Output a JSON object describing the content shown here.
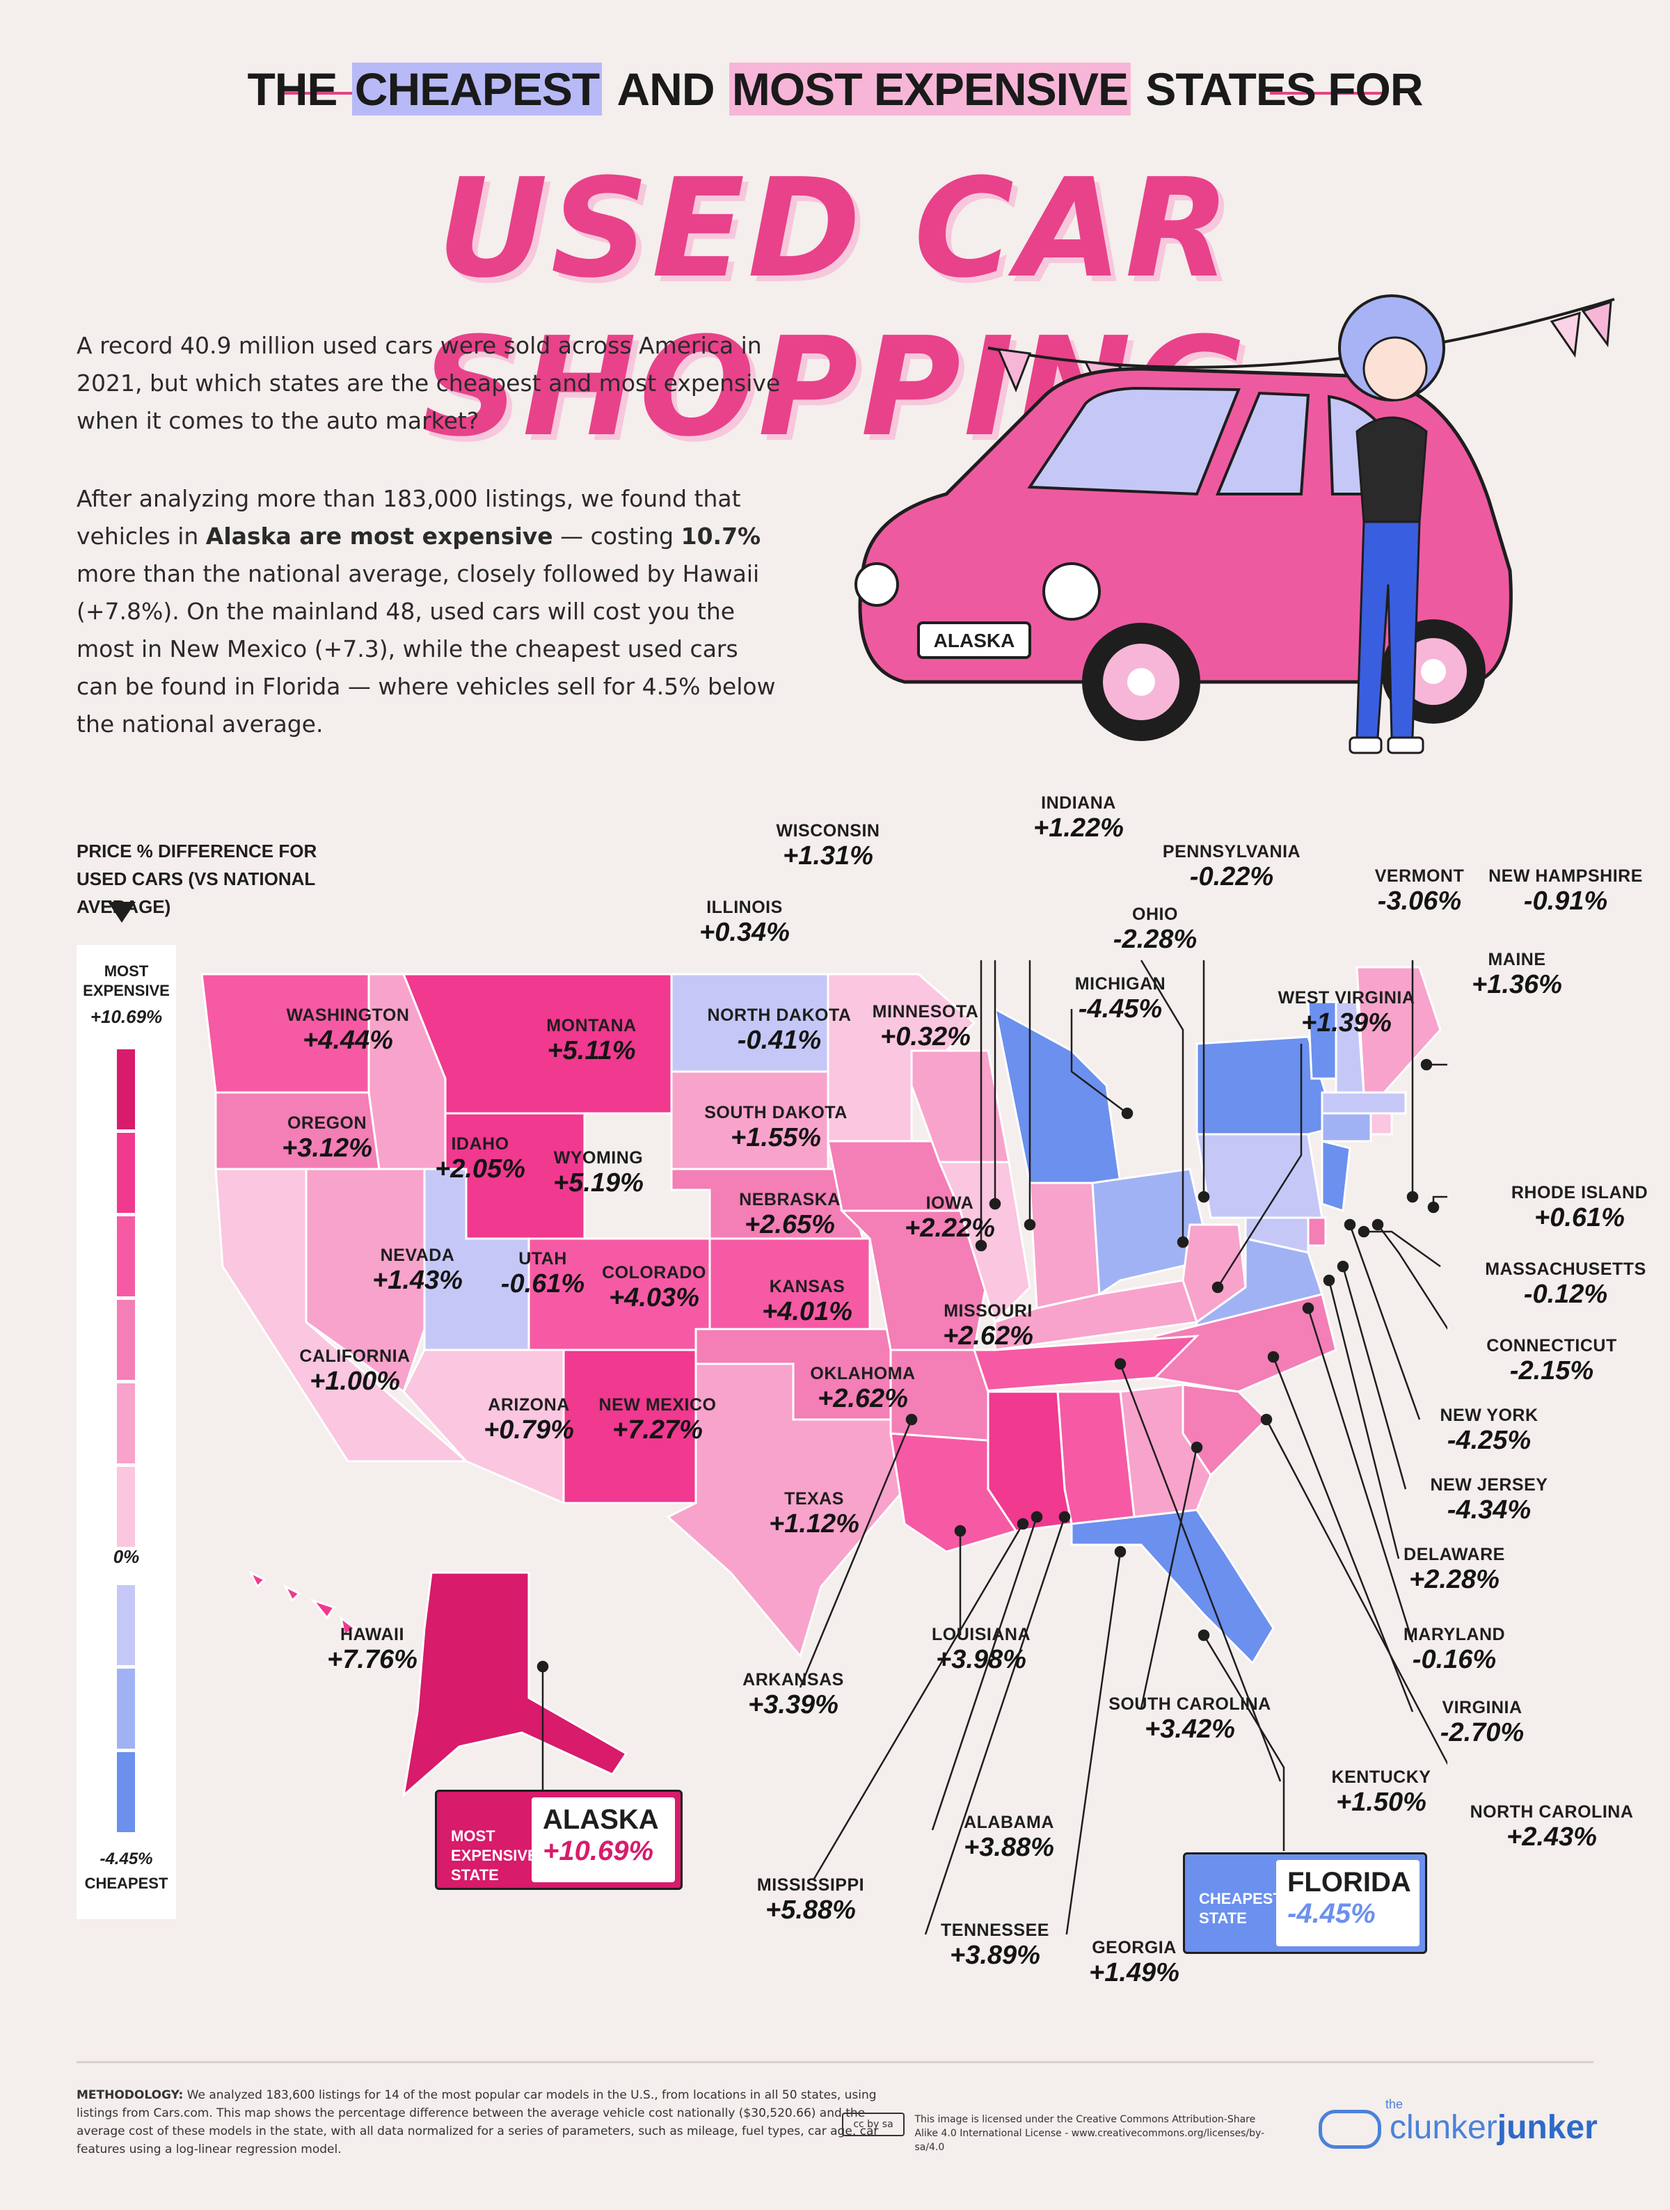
{
  "header": {
    "title_parts": [
      "THE",
      "CHEAPEST",
      "AND",
      "MOST EXPENSIVE",
      "STATES FOR"
    ],
    "main_title": "USED CAR SHOPPING"
  },
  "intro": {
    "p1": "A record 40.9 million used cars were sold across America in 2021, but which states are the cheapest and most expensive when it comes to the auto market?",
    "p2_a": "After analyzing more than 183,000 listings, we found that vehicles in ",
    "p2_b": "Alaska are most expensive",
    "p2_c": " — costing ",
    "p2_d": "10.7%",
    "p2_e": " more than the national average, closely followed by Hawaii (+7.8%). On the mainland 48, used cars will cost you the most in New Mexico (+7.3), while the cheapest used cars can be found in Florida — where vehicles sell for 4.5% below the national average."
  },
  "illustration": {
    "plate": "ALASKA"
  },
  "legend": {
    "title": "PRICE % DIFFERENCE FOR USED CARS (VS NATIONAL AVERAGE)",
    "top_label": "MOST EXPENSIVE",
    "top_value": "+10.69%",
    "mid_value": "0%",
    "bottom_value": "-4.45%",
    "bottom_label": "CHEAPEST",
    "colors": [
      "#d81b6b",
      "#f0398f",
      "#f65aa4",
      "#f47eb6",
      "#f8a3cb",
      "#fbc6df",
      "#c5c8f7",
      "#a1b2f4",
      "#6b90ee"
    ]
  },
  "states": {
    "WA": {
      "name": "WASHINGTON",
      "value": "+4.44%"
    },
    "OR": {
      "name": "OREGON",
      "value": "+3.12%"
    },
    "CA": {
      "name": "CALIFORNIA",
      "value": "+1.00%"
    },
    "NV": {
      "name": "NEVADA",
      "value": "+1.43%"
    },
    "ID": {
      "name": "IDAHO",
      "value": "+2.05%"
    },
    "MT": {
      "name": "MONTANA",
      "value": "+5.11%"
    },
    "WY": {
      "name": "WYOMING",
      "value": "+5.19%"
    },
    "UT": {
      "name": "UTAH",
      "value": "-0.61%"
    },
    "CO": {
      "name": "COLORADO",
      "value": "+4.03%"
    },
    "AZ": {
      "name": "ARIZONA",
      "value": "+0.79%"
    },
    "NM": {
      "name": "NEW MEXICO",
      "value": "+7.27%"
    },
    "ND": {
      "name": "NORTH DAKOTA",
      "value": "-0.41%"
    },
    "SD": {
      "name": "SOUTH DAKOTA",
      "value": "+1.55%"
    },
    "NE": {
      "name": "NEBRASKA",
      "value": "+2.65%"
    },
    "KS": {
      "name": "KANSAS",
      "value": "+4.01%"
    },
    "OK": {
      "name": "OKLAHOMA",
      "value": "+2.62%"
    },
    "TX": {
      "name": "TEXAS",
      "value": "+1.12%"
    },
    "MN": {
      "name": "MINNESOTA",
      "value": "+0.32%"
    },
    "IA": {
      "name": "IOWA",
      "value": "+2.22%"
    },
    "MO": {
      "name": "MISSOURI",
      "value": "+2.62%"
    },
    "WI": {
      "name": "WISCONSIN",
      "value": "+1.31%"
    },
    "IL": {
      "name": "ILLINOIS",
      "value": "+0.34%"
    },
    "IN": {
      "name": "INDIANA",
      "value": "+1.22%"
    },
    "MI": {
      "name": "MICHIGAN",
      "value": "-4.45%"
    },
    "OH": {
      "name": "OHIO",
      "value": "-2.28%"
    },
    "PA": {
      "name": "PENNSYLVANIA",
      "value": "-0.22%"
    },
    "WV": {
      "name": "WEST VIRGINIA",
      "value": "+1.39%"
    },
    "VT": {
      "name": "VERMONT",
      "value": "-3.06%"
    },
    "NH": {
      "name": "NEW HAMPSHIRE",
      "value": "-0.91%"
    },
    "ME": {
      "name": "MAINE",
      "value": "+1.36%"
    },
    "RI": {
      "name": "RHODE ISLAND",
      "value": "+0.61%"
    },
    "MA": {
      "name": "MASSACHUSETTS",
      "value": "-0.12%"
    },
    "CT": {
      "name": "CONNECTICUT",
      "value": "-2.15%"
    },
    "NY": {
      "name": "NEW YORK",
      "value": "-4.25%"
    },
    "NJ": {
      "name": "NEW JERSEY",
      "value": "-4.34%"
    },
    "DE": {
      "name": "DELAWARE",
      "value": "+2.28%"
    },
    "MD": {
      "name": "MARYLAND",
      "value": "-0.16%"
    },
    "VA": {
      "name": "VIRGINIA",
      "value": "-2.70%"
    },
    "NC": {
      "name": "NORTH CAROLINA",
      "value": "+2.43%"
    },
    "KY": {
      "name": "KENTUCKY",
      "value": "+1.50%"
    },
    "TN": {
      "name": "TENNESSEE",
      "value": "+3.89%"
    },
    "SC": {
      "name": "SOUTH CAROLINA",
      "value": "+3.42%"
    },
    "GA": {
      "name": "GEORGIA",
      "value": "+1.49%"
    },
    "AL": {
      "name": "ALABAMA",
      "value": "+3.88%"
    },
    "MS": {
      "name": "MISSISSIPPI",
      "value": "+5.88%"
    },
    "LA": {
      "name": "LOUISIANA",
      "value": "+3.98%"
    },
    "AR": {
      "name": "ARKANSAS",
      "value": "+3.39%"
    },
    "HI": {
      "name": "HAWAII",
      "value": "+7.76%"
    },
    "FL": {
      "name": "FLORIDA",
      "value": "-4.45%"
    },
    "AK": {
      "name": "ALASKA",
      "value": "+10.69%"
    }
  },
  "callouts": {
    "most": {
      "label": "MOST EXPENSIVE STATE",
      "state": "ALASKA",
      "value": "+10.69%",
      "color": "#d81b6b"
    },
    "cheapest": {
      "label": "CHEAPEST STATE",
      "state": "FLORIDA",
      "value": "-4.45%",
      "color": "#6b90ee"
    }
  },
  "footer": {
    "methodology_label": "METHODOLOGY:",
    "methodology": " We analyzed 183,600 listings for 14 of the most popular car models in the U.S., from locations in all 50 states, using listings from Cars.com. This map shows the percentage difference between the average vehicle cost nationally ($30,520.66) and the average cost of these models in the state, with all data normalized for a series of parameters, such as mileage, fuel types, car age, car features using a log-linear regression model.",
    "license": "This image is licensed under the Creative Commons Attribution-Share Alike 4.0 International License - www.creativecommons.org/licenses/by-sa/4.0",
    "brand_the": "the",
    "brand_a": "clunker",
    "brand_b": "junker"
  }
}
